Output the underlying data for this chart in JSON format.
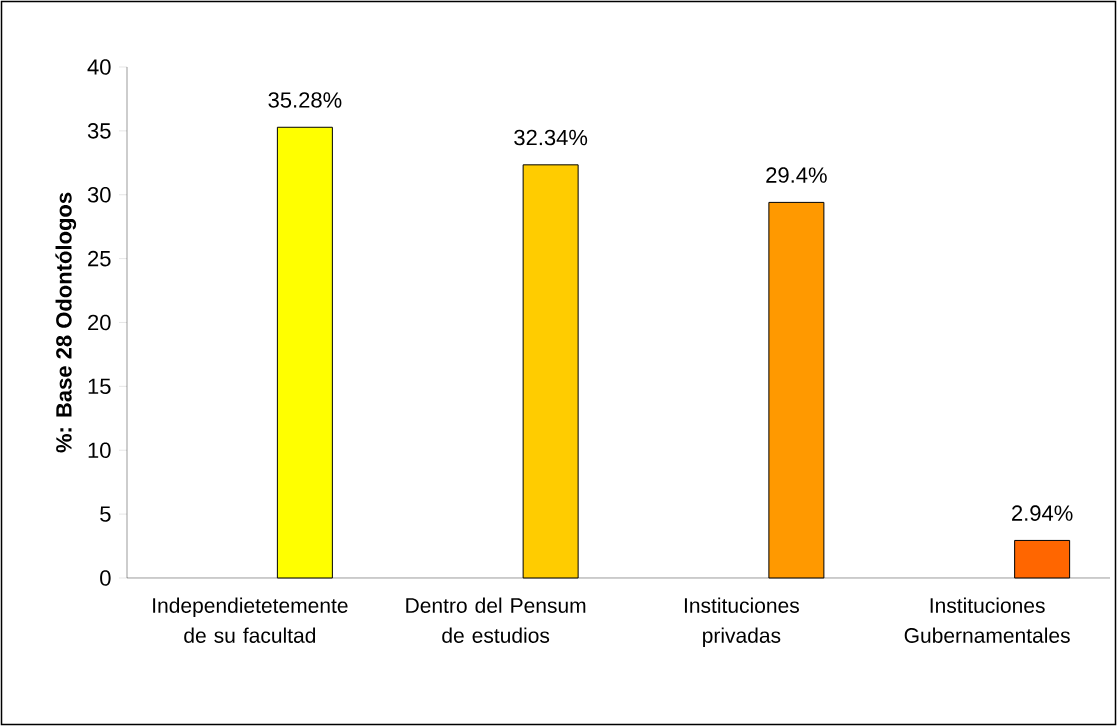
{
  "chart_data": {
    "type": "bar",
    "ylabel": "%: Base 28 Odontólogos",
    "categories": [
      "Independietetemente de su facultad",
      "Dentro del Pensum de estudios",
      "Instituciones privadas",
      "Instituciones Gubernamentales"
    ],
    "values": [
      35.28,
      32.34,
      29.4,
      2.94
    ],
    "colors": [
      "#ffff00",
      "#ffcc00",
      "#ff9900",
      "#ff6600"
    ],
    "value_labels": [
      "35.28%",
      "32.34%",
      "29.4%",
      "2.94%"
    ],
    "ylim": [
      0,
      40
    ],
    "yticks": [
      0,
      5,
      10,
      15,
      20,
      25,
      30,
      35,
      40
    ]
  }
}
